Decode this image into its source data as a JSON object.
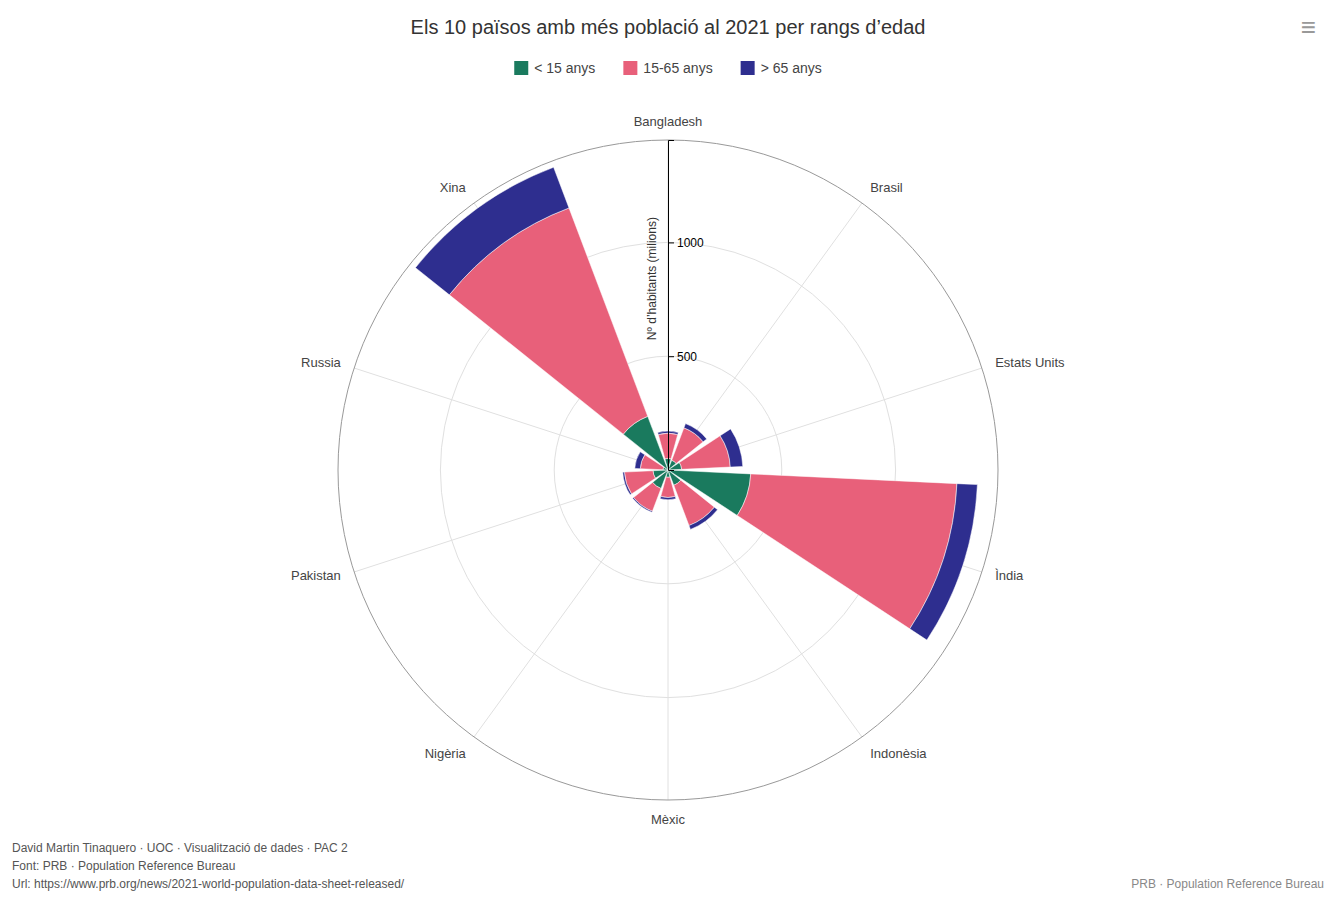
{
  "chart_data": {
    "type": "polar_bar",
    "title": "Els 10 països amb més població al 2021 per rangs d’edad",
    "categories": [
      "Bangladesh",
      "Brasil",
      "Estats Units",
      "Ìndia",
      "Indonèsia",
      "Mèxic",
      "Nigèria",
      "Pakistan",
      "Russia",
      "Xina"
    ],
    "series": [
      {
        "name": "< 15 anys",
        "color": "#1a7a5e",
        "values": [
          51,
          46,
          60,
          364,
          72,
          32,
          87,
          66,
          22,
          252
        ]
      },
      {
        "name": "15-65 anys",
        "color": "#e8607a",
        "values": [
          111,
          152,
          214,
          907,
          189,
          89,
          107,
          126,
          100,
          979
        ]
      },
      {
        "name": "> 65 anys",
        "color": "#2e2e8f",
        "values": [
          9,
          20,
          55,
          90,
          18,
          10,
          5,
          7,
          24,
          191
        ]
      }
    ],
    "stacked": true,
    "y_label": "Nº d’habitants (milions)",
    "ylim": [
      0,
      1450
    ],
    "yticks": [
      500,
      1000
    ],
    "grid": true,
    "legend": "top",
    "annotations": [
      "David Martin Tinaquero · UOC · Visualització de dades · PAC 2",
      "Font: PRB · Population Reference Bureau",
      "Url: https://www.prb.org/news/2021-world-population-data-sheet-released/",
      "PRB · Population Reference Bureau",
      "≡"
    ]
  }
}
